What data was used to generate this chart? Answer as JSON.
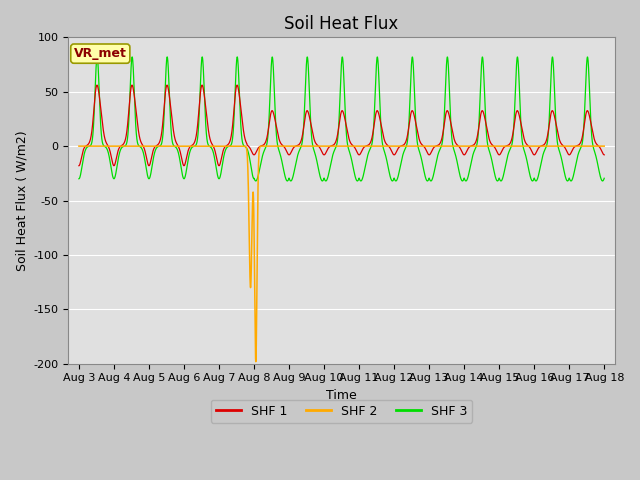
{
  "title": "Soil Heat Flux",
  "ylabel": "Soil Heat Flux (W/m2)",
  "xlabel": "Time",
  "ylim": [
    -200,
    100
  ],
  "fig_bg_color": "#c8c8c8",
  "plot_bg_color": "#e0e0e0",
  "shf1_color": "#dd0000",
  "shf2_color": "#ffaa00",
  "shf3_color": "#00dd00",
  "legend_label1": "SHF 1",
  "legend_label2": "SHF 2",
  "legend_label3": "SHF 3",
  "vr_met_label": "VR_met",
  "title_fontsize": 12,
  "label_fontsize": 9,
  "tick_fontsize": 8,
  "n_days": 15,
  "dt": 0.002,
  "hours_per_day": 24,
  "shf2_spike_day": 5.05,
  "shf2_pre_spike_day": 4.9,
  "shf2_spike_min": -198,
  "shf2_pre_spike_min": -130
}
